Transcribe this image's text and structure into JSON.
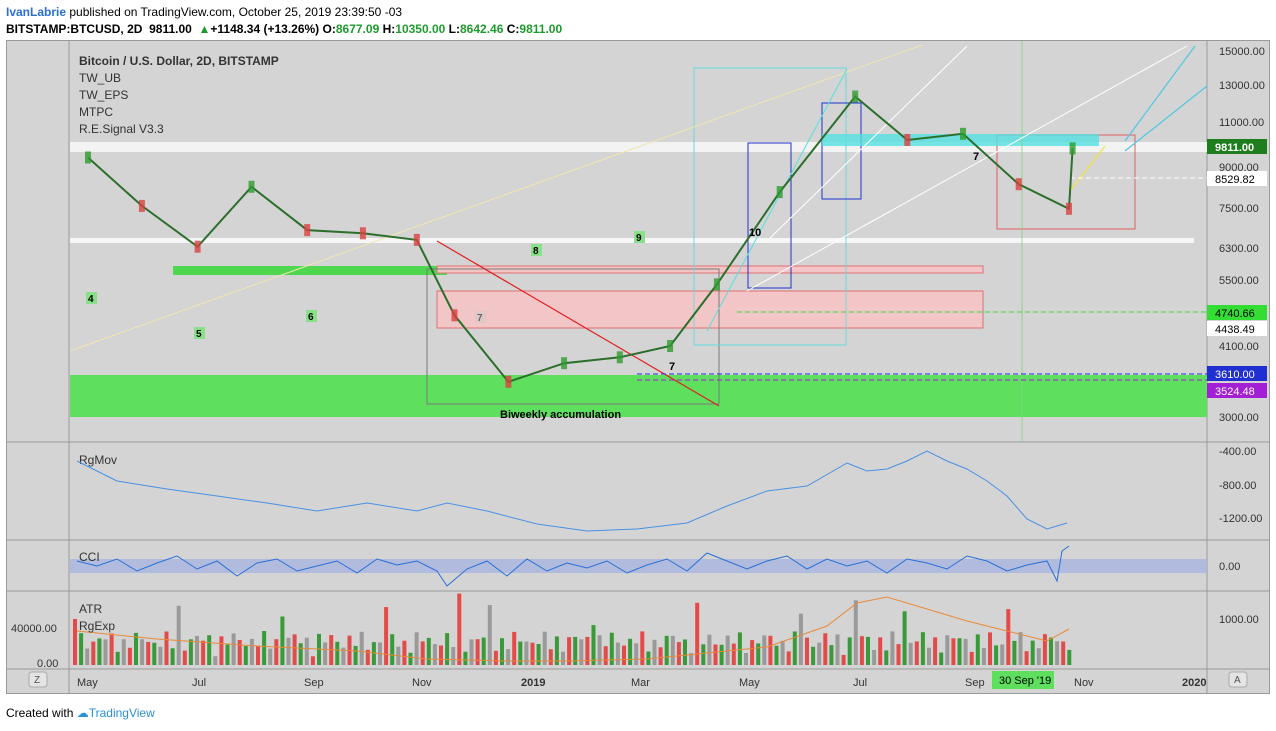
{
  "header": {
    "author": "IvanLabrie",
    "published_text": " published on TradingView.com, October 25, 2019 23:39:50 -03",
    "symbol": "BITSTAMP:BTCUSD, 2D",
    "last": "9811.00",
    "change": "+1148.34 (+13.26%)",
    "o_label": "O:",
    "o_value": "8677.09",
    "h_label": "H:",
    "h_value": "10350.00",
    "l_label": "L:",
    "l_value": "8642.46",
    "c_label": "C:",
    "c_value": "9811.00"
  },
  "footer": {
    "created_with": "Created with",
    "brand": "TradingView"
  },
  "chart_data": {
    "type": "line",
    "title": "Bitcoin / U.S. Dollar, 2D, BITSTAMP",
    "indicators": [
      "TW_UB",
      "TW_EPS",
      "MTPC",
      "R.E.Signal V3.3"
    ],
    "x_ticks": [
      "May",
      "Jul",
      "Sep",
      "Nov",
      "2019",
      "Mar",
      "May",
      "Jul",
      "Sep",
      "Nov",
      "2020"
    ],
    "crosshair_date": "30 Sep '19",
    "price_axis": {
      "ticks": [
        "15000.00",
        "13000.00",
        "11000.00",
        "9000.00",
        "7500.00",
        "6300.00",
        "5500.00",
        "4100.00",
        "3000.00"
      ],
      "scale": "log",
      "ylim": [
        2800,
        15600
      ]
    },
    "price_labels": [
      {
        "value": "9811.00",
        "color": "#1e7e1e"
      },
      {
        "value": "8529.82",
        "color": "#ffffff"
      },
      {
        "value": "4740.66",
        "color": "#33dd33"
      },
      {
        "value": "4438.49",
        "color": "#ffffff"
      },
      {
        "value": "3610.00",
        "color": "#1f2fd0"
      },
      {
        "value": "3524.48",
        "color": "#a21fd6"
      }
    ],
    "annotations": [
      "Biweekly accumulation"
    ],
    "wave_labels": [
      "4",
      "5",
      "6",
      "7",
      "8",
      "9",
      "10",
      "7",
      "7"
    ],
    "series": [
      {
        "name": "BTCUSD",
        "x": [
          "2018-04-25",
          "2018-05-25",
          "2018-06-25",
          "2018-07-25",
          "2018-08-25",
          "2018-09-25",
          "2018-10-25",
          "2018-11-15",
          "2018-12-15",
          "2019-01-15",
          "2019-02-15",
          "2019-03-15",
          "2019-04-10",
          "2019-05-15",
          "2019-06-26",
          "2019-07-25",
          "2019-08-25",
          "2019-09-25",
          "2019-10-23",
          "2019-10-25"
        ],
        "values": [
          9400,
          7500,
          6200,
          8200,
          6700,
          6600,
          6400,
          4500,
          3300,
          3600,
          3700,
          3900,
          5200,
          8000,
          12500,
          10200,
          10500,
          8300,
          7400,
          9811
        ]
      }
    ],
    "panes": [
      {
        "name": "RgMov",
        "ticks": [
          "-400.00",
          "-800.00",
          "-1200.00"
        ]
      },
      {
        "name": "CCI",
        "ticks": [
          "0.00"
        ]
      },
      {
        "name": "ATR",
        "name2": "RgExp",
        "ticks_left": [
          "40000.00",
          "0.00"
        ],
        "ticks_right": [
          "1000.00"
        ]
      }
    ]
  }
}
